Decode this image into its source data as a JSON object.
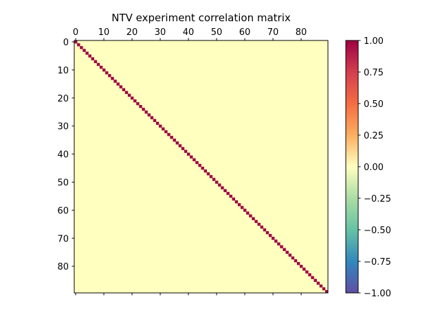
{
  "chart_data": {
    "type": "heatmap",
    "title": "NTV experiment correlation matrix",
    "matrix_size": 90,
    "value_description": "pairwise correlation; diagonal = 1.0, off-diagonal values near 0",
    "diagonal_value": 1.0,
    "off_diagonal_value": 0.0,
    "x_ticks": [
      0,
      10,
      20,
      30,
      40,
      50,
      60,
      70,
      80
    ],
    "y_ticks": [
      0,
      10,
      20,
      30,
      40,
      50,
      60,
      70,
      80
    ],
    "x_tick_position": "top",
    "colormap": "Spectral_r",
    "colorbar": {
      "min": -1.0,
      "max": 1.0,
      "ticks": [
        1.0,
        0.75,
        0.5,
        0.25,
        0.0,
        -0.25,
        -0.5,
        -0.75,
        -1.0
      ],
      "tick_labels": [
        "1.00",
        "0.75",
        "0.50",
        "0.25",
        "0.00",
        "−0.25",
        "−0.50",
        "−0.75",
        "−1.00"
      ],
      "stops": [
        {
          "value": -1.0,
          "color": "#5e4fa2"
        },
        {
          "value": -0.75,
          "color": "#3288bd"
        },
        {
          "value": -0.5,
          "color": "#66c2a5"
        },
        {
          "value": -0.25,
          "color": "#abdda4"
        },
        {
          "value": 0.0,
          "color": "#ffffbf"
        },
        {
          "value": 0.25,
          "color": "#fdae61"
        },
        {
          "value": 0.5,
          "color": "#f46d43"
        },
        {
          "value": 0.75,
          "color": "#d53e4f"
        },
        {
          "value": 1.0,
          "color": "#9e0142"
        }
      ]
    },
    "grid": false
  }
}
